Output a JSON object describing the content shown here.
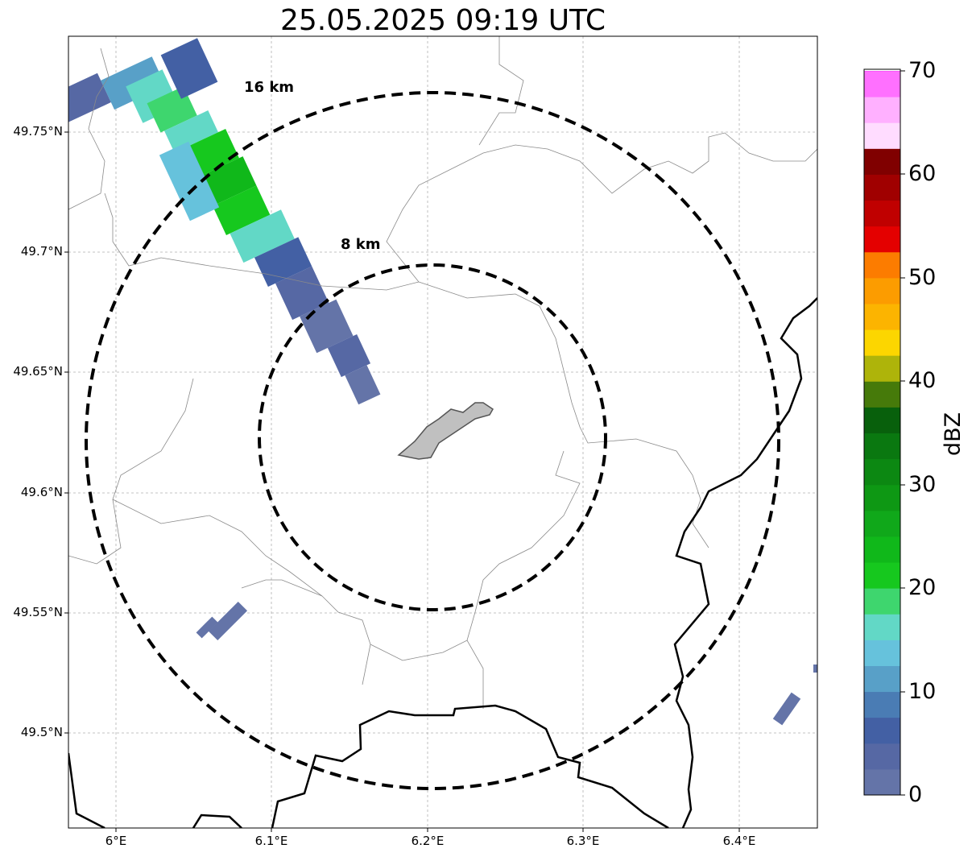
{
  "title": "25.05.2025 09:19 UTC",
  "axes": {
    "lat_ticks": [
      "49.75°N",
      "49.7°N",
      "49.65°N",
      "49.6°N",
      "49.55°N",
      "49.5°N"
    ],
    "lon_ticks": [
      "6°E",
      "6.1°E",
      "6.2°E",
      "6.3°E",
      "6.4°E"
    ],
    "lon_range": [
      5.97,
      6.45
    ],
    "lat_range": [
      49.46,
      49.79
    ],
    "grid": true
  },
  "range_rings": [
    {
      "label": "16 km",
      "radius_km": 16
    },
    {
      "label": "8 km",
      "radius_km": 8
    }
  ],
  "colorbar": {
    "label": "dBZ",
    "ticks": [
      "70",
      "60",
      "50",
      "40",
      "30",
      "20",
      "10",
      "0"
    ],
    "min": 0,
    "max": 70,
    "step": 2.5,
    "colors": [
      "#6474a8",
      "#5668a4",
      "#4360a4",
      "#4a7cb4",
      "#58a0c8",
      "#66c2dc",
      "#62d8c6",
      "#3ed66e",
      "#16c81e",
      "#10b81a",
      "#10a81a",
      "#0e9814",
      "#0c8812",
      "#0a7810",
      "#08600c",
      "#467a0a",
      "#aeb40a",
      "#fcd600",
      "#fcb400",
      "#fc9c00",
      "#fc7c00",
      "#e40000",
      "#c00000",
      "#a00000",
      "#800000",
      "#ffdcff",
      "#ffb0ff",
      "#ff70ff",
      "#f040f0"
    ]
  },
  "map_colors": {
    "border": "#000000",
    "admin": "#8a8a8a",
    "city": "#c0c0c0",
    "ring": "#000000"
  }
}
